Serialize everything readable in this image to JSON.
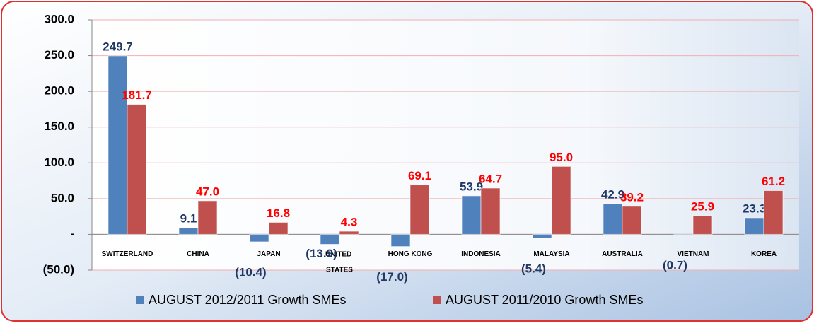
{
  "chart_data": {
    "type": "bar",
    "categories": [
      "SWITZERLAND",
      "CHINA",
      "JAPAN",
      "UNITED STATES",
      "HONG KONG",
      "INDONESIA",
      "MALAYSIA",
      "AUSTRALIA",
      "VIETNAM",
      "KOREA"
    ],
    "series": [
      {
        "name": "AUGUST 2012/2011 Growth SMEs",
        "color": "#4f81bd",
        "values": [
          249.7,
          9.1,
          -10.4,
          -13.9,
          -17.0,
          53.9,
          -5.4,
          42.9,
          -0.7,
          23.3
        ],
        "value_labels": [
          "249.7",
          "9.1",
          "(10.4)",
          "(13.9)",
          "(17.0)",
          "53.9",
          "(5.4)",
          "42.9",
          "(0.7)",
          "23.3"
        ]
      },
      {
        "name": "AUGUST 2011/2010 Growth SMEs",
        "color": "#c0504d",
        "values": [
          181.7,
          47.0,
          16.8,
          4.3,
          69.1,
          64.7,
          95.0,
          39.2,
          25.9,
          61.2
        ],
        "value_labels": [
          "181.7",
          "47.0",
          "16.8",
          "4.3",
          "69.1",
          "64.7",
          "95.0",
          "39.2",
          "25.9",
          "61.2"
        ]
      }
    ],
    "ylim": [
      -50,
      300
    ],
    "yticks": [
      {
        "value": -50,
        "label": "(50.0)"
      },
      {
        "value": 0,
        "label": "-"
      },
      {
        "value": 50,
        "label": "50.0"
      },
      {
        "value": 100,
        "label": "100.0"
      },
      {
        "value": 150,
        "label": "150.0"
      },
      {
        "value": 200,
        "label": "200.0"
      },
      {
        "value": 250,
        "label": "250.0"
      },
      {
        "value": 300,
        "label": "300.0"
      }
    ],
    "grid": true,
    "legend": "bottom"
  }
}
